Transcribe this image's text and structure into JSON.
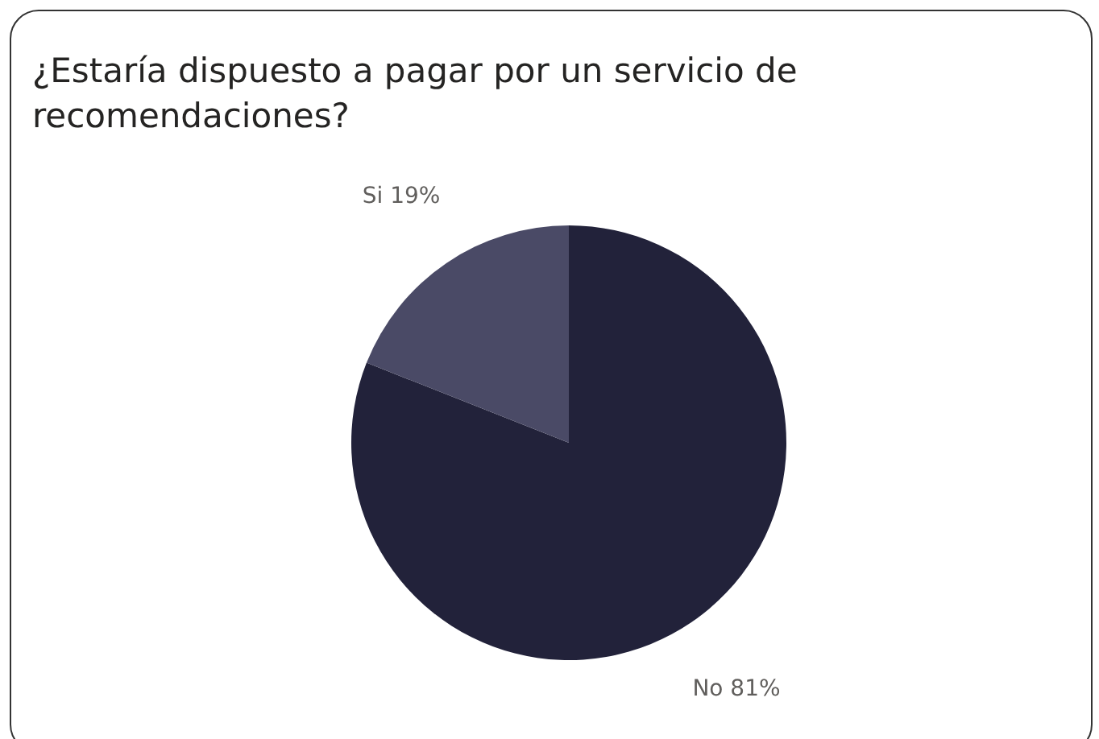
{
  "chart_data": {
    "type": "pie",
    "title": "¿Estaría dispuesto a pagar por un servicio de recomendaciones?",
    "categories": [
      "No",
      "Si"
    ],
    "values": [
      81,
      19
    ],
    "colors": [
      "#22223a",
      "#4a4a66"
    ],
    "value_labels": [
      "81%",
      "19%"
    ],
    "legend": false
  }
}
